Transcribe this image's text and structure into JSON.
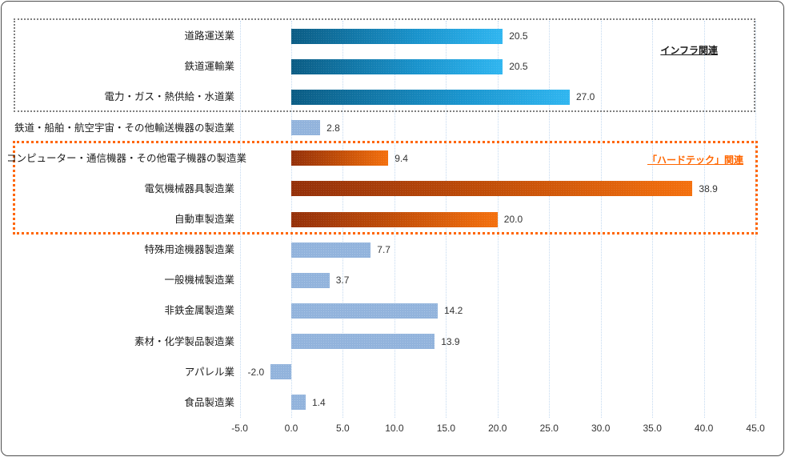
{
  "chart_data": {
    "type": "bar",
    "orientation": "horizontal",
    "categories": [
      "道路運送業",
      "鉄道運輸業",
      "電力・ガス・熱供給・水道業",
      "鉄道・船舶・航空宇宙・その他輸送機器の製造業",
      "コンピューター・通信機器・その他電子機器の製造業",
      "電気機械器具製造業",
      "自動車製造業",
      "特殊用途機器製造業",
      "一般機械製造業",
      "非鉄金属製造業",
      "素材・化学製品製造業",
      "アパレル業",
      "食品製造業"
    ],
    "values": [
      20.5,
      20.5,
      27.0,
      2.8,
      9.4,
      38.9,
      20.0,
      7.7,
      3.7,
      14.2,
      13.9,
      -2.0,
      1.4
    ],
    "value_labels": [
      "20.5",
      "20.5",
      "27.0",
      "2.8",
      "9.4",
      "38.9",
      "20.0",
      "7.7",
      "3.7",
      "14.2",
      "13.9",
      "-2.0",
      "1.4"
    ],
    "styles": [
      "infra",
      "infra",
      "infra",
      "other",
      "hardtech",
      "hardtech",
      "hardtech",
      "other",
      "other",
      "other",
      "other",
      "other",
      "other"
    ],
    "xlim": [
      -5.0,
      45.0
    ],
    "xtick_labels": [
      "-5.0",
      "0.0",
      "5.0",
      "10.0",
      "15.0",
      "20.0",
      "25.0",
      "30.0",
      "35.0",
      "40.0",
      "45.0"
    ],
    "xtick_values": [
      -5,
      0,
      5,
      10,
      15,
      20,
      25,
      30,
      35,
      40,
      45
    ],
    "grid": true,
    "groups": [
      {
        "label": "インフラ関連",
        "first_row": 0,
        "last_row": 2,
        "color": "#7f7f7f"
      },
      {
        "label": "「ハードテック」関連",
        "first_row": 4,
        "last_row": 6,
        "color": "#ff6600"
      }
    ],
    "colors": {
      "infra_bar_gradient": [
        "#0b5c84",
        "#30b6f0"
      ],
      "hardtech_bar_gradient": [
        "#94300a",
        "#f4700e"
      ],
      "other_bar": "#92b3dc",
      "gridline": "#c3d9f0"
    }
  }
}
